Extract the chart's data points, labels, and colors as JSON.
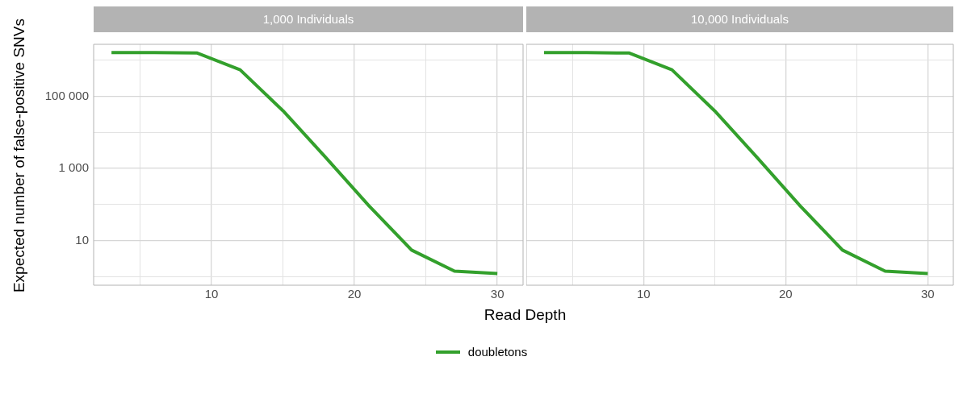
{
  "chart_data": [
    {
      "type": "line",
      "title": "1,000 Individuals",
      "xlabel": "Read Depth",
      "ylabel": "Expected number of false-positive SNVs",
      "x": [
        3,
        6,
        9,
        12,
        15,
        18,
        21,
        24,
        27,
        30
      ],
      "series": [
        {
          "name": "doubletons",
          "color": "#33a02c",
          "values": [
            1660000,
            1650000,
            1600000,
            550000,
            40000,
            2000,
            93,
            5.4,
            1.4,
            1.2
          ]
        }
      ],
      "log": "y",
      "xlim": [
        1.75,
        31.8
      ],
      "xticks": [
        {
          "value": 5,
          "label": null
        },
        10,
        {
          "value": 15,
          "label": null
        },
        20,
        {
          "value": 25,
          "label": null
        },
        30
      ],
      "ylim": [
        0.57,
        2800000
      ],
      "yticks": [
        {
          "value": 1,
          "label": null
        },
        10,
        {
          "value": 100,
          "label": null
        },
        {
          "value": 1000,
          "label": "1 000"
        },
        {
          "value": 10000,
          "label": null
        },
        {
          "value": 100000,
          "label": "100 000"
        },
        {
          "value": 1000000,
          "label": null
        }
      ],
      "grid": true,
      "legend": "bottom",
      "marker": "none",
      "line_style": "solid"
    },
    {
      "type": "line",
      "title": "10,000 Individuals",
      "x": [
        3,
        6,
        9,
        12,
        15,
        18,
        21,
        24,
        27,
        30
      ],
      "series": [
        {
          "color": "#33a02c",
          "values": [
            1660000,
            1650000,
            1600000,
            550000,
            40000,
            2000,
            93,
            5.4,
            1.4,
            1.2
          ]
        }
      ],
      "log": "y",
      "xlim": [
        1.75,
        31.8
      ],
      "xticks": [
        {
          "value": 5,
          "label": null
        },
        10,
        {
          "value": 15,
          "label": null
        },
        20,
        {
          "value": 25,
          "label": null
        },
        30
      ],
      "ylim": [
        0.57,
        2800000
      ],
      "yticks": [
        {
          "value": 1,
          "label": null
        },
        10,
        {
          "value": 100,
          "label": null
        },
        1000,
        {
          "value": 10000,
          "label": null
        },
        100000,
        {
          "value": 1000000,
          "label": null
        }
      ],
      "grid": true,
      "tick_labels": "x",
      "marker": "none",
      "line_style": "solid"
    }
  ]
}
